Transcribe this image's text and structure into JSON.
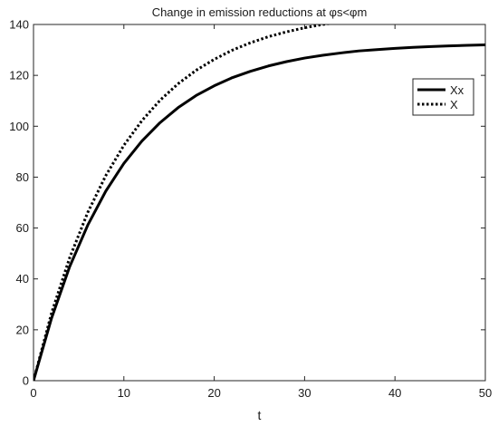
{
  "chart_data": {
    "type": "line",
    "title": "Change in emission reductions at  φs<φm",
    "xlabel": "t",
    "ylabel": "",
    "xlim": [
      0,
      50
    ],
    "ylim": [
      0,
      140
    ],
    "xticks": [
      0,
      10,
      20,
      30,
      40,
      50
    ],
    "yticks": [
      0,
      20,
      40,
      60,
      80,
      100,
      120,
      140
    ],
    "grid": false,
    "legend_position": "top-right",
    "series": [
      {
        "name": "Xx",
        "style": "solid",
        "color": "#000000",
        "x": [
          0,
          2,
          4,
          6,
          8,
          10,
          12,
          14,
          16,
          18,
          20,
          22,
          24,
          26,
          28,
          30,
          32,
          34,
          36,
          38,
          40,
          42,
          44,
          46,
          48,
          50
        ],
        "y": [
          0,
          24.6,
          44.8,
          61.1,
          74.5,
          85.4,
          94.2,
          101.4,
          107.3,
          112.1,
          115.9,
          119.1,
          121.6,
          123.7,
          125.4,
          126.8,
          127.9,
          128.8,
          129.6,
          130.1,
          130.6,
          131.0,
          131.3,
          131.6,
          131.8,
          132.0
        ]
      },
      {
        "name": "X",
        "style": "dotted",
        "color": "#000000",
        "x": [
          0,
          2,
          4,
          6,
          8,
          10,
          12,
          14,
          16,
          18,
          20,
          22,
          24,
          26,
          28,
          30,
          32,
          34,
          36,
          38,
          40,
          42,
          44,
          46,
          48,
          50
        ],
        "y": [
          0,
          26.6,
          48.3,
          66.1,
          80.6,
          92.5,
          102.2,
          110.2,
          116.7,
          122.0,
          126.3,
          129.9,
          132.8,
          135.2,
          137.1,
          138.7,
          140.0,
          141.1,
          142.0,
          142.7,
          143.2,
          143.7,
          144.1,
          144.4,
          144.6,
          144.8
        ]
      }
    ]
  }
}
